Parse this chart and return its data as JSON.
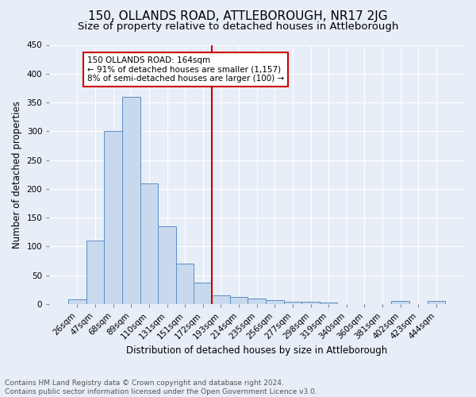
{
  "title1": "150, OLLANDS ROAD, ATTLEBOROUGH, NR17 2JG",
  "title2": "Size of property relative to detached houses in Attleborough",
  "xlabel": "Distribution of detached houses by size in Attleborough",
  "ylabel": "Number of detached properties",
  "footnote1": "Contains HM Land Registry data © Crown copyright and database right 2024.",
  "footnote2": "Contains public sector information licensed under the Open Government Licence v3.0.",
  "bar_labels": [
    "26sqm",
    "47sqm",
    "68sqm",
    "89sqm",
    "110sqm",
    "131sqm",
    "151sqm",
    "172sqm",
    "193sqm",
    "214sqm",
    "235sqm",
    "256sqm",
    "277sqm",
    "298sqm",
    "319sqm",
    "340sqm",
    "360sqm",
    "381sqm",
    "402sqm",
    "423sqm",
    "444sqm"
  ],
  "bar_values": [
    8,
    110,
    300,
    360,
    210,
    135,
    70,
    37,
    15,
    12,
    10,
    7,
    4,
    4,
    3,
    0,
    0,
    0,
    5,
    0,
    5
  ],
  "bar_color": "#c9d9ed",
  "bar_edge_color": "#5b8ec4",
  "vline_x_idx": 7,
  "vline_color": "#cc0000",
  "annotation_text": "150 OLLANDS ROAD: 164sqm\n← 91% of detached houses are smaller (1,157)\n8% of semi-detached houses are larger (100) →",
  "annotation_box_color": "white",
  "annotation_box_edge_color": "#cc0000",
  "ylim": [
    0,
    450
  ],
  "yticks": [
    0,
    50,
    100,
    150,
    200,
    250,
    300,
    350,
    400,
    450
  ],
  "background_color": "#e8eef7",
  "axes_background_color": "#e8eef7",
  "title1_fontsize": 11,
  "title2_fontsize": 9.5,
  "xlabel_fontsize": 8.5,
  "ylabel_fontsize": 8.5,
  "footnote_fontsize": 6.5,
  "grid_color": "white",
  "tick_label_fontsize": 7.5,
  "annotation_fontsize": 7.5
}
